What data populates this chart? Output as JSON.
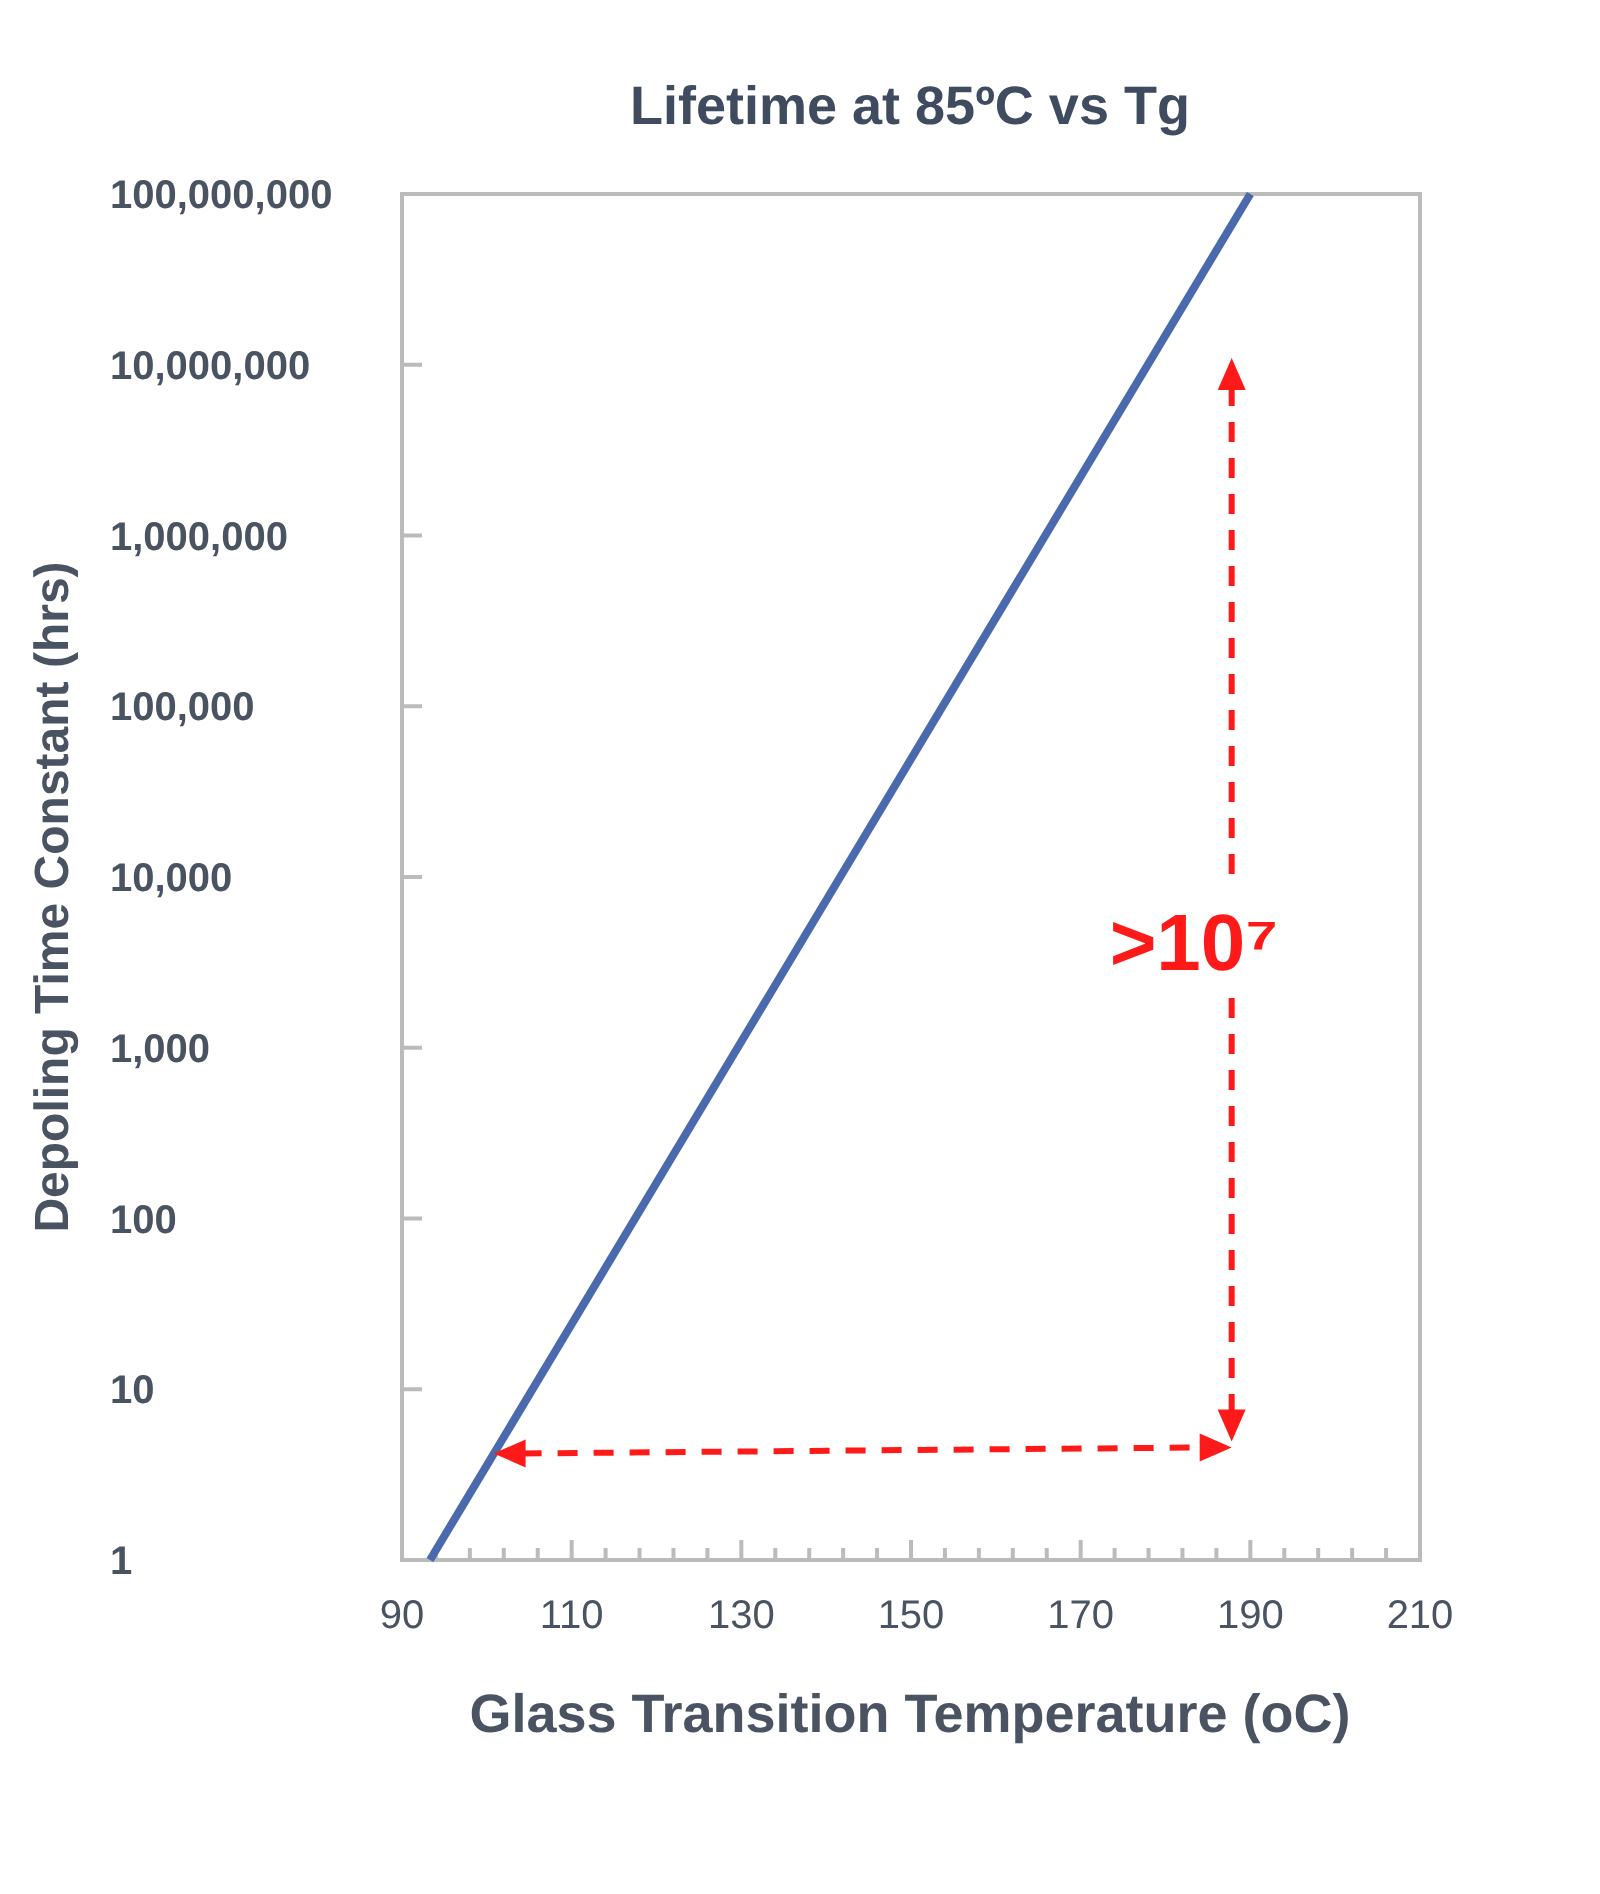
{
  "chart_data": {
    "type": "line",
    "title": "Lifetime at 85ºC vs Tg",
    "xlabel": "Glass Transition Temperature (oC)",
    "ylabel": "Depoling Time Constant (hrs)",
    "x": [
      93.3,
      190
    ],
    "series": [
      {
        "color": "#4a6aad",
        "values": [
          1,
          100000000
        ]
      }
    ],
    "log": "y",
    "xlim": [
      90,
      210
    ],
    "ylim": [
      1,
      100000000
    ],
    "xticks": [
      90,
      {
        "value": 94,
        "label": null
      },
      {
        "value": 98,
        "label": null
      },
      {
        "value": 102,
        "label": null
      },
      {
        "value": 106,
        "label": null
      },
      110,
      {
        "value": 114,
        "label": null
      },
      {
        "value": 118,
        "label": null
      },
      {
        "value": 122,
        "label": null
      },
      {
        "value": 126,
        "label": null
      },
      130,
      {
        "value": 134,
        "label": null
      },
      {
        "value": 138,
        "label": null
      },
      {
        "value": 142,
        "label": null
      },
      {
        "value": 146,
        "label": null
      },
      150,
      {
        "value": 154,
        "label": null
      },
      {
        "value": 158,
        "label": null
      },
      {
        "value": 162,
        "label": null
      },
      {
        "value": 166,
        "label": null
      },
      170,
      {
        "value": 174,
        "label": null
      },
      {
        "value": 178,
        "label": null
      },
      {
        "value": 182,
        "label": null
      },
      {
        "value": 186,
        "label": null
      },
      190,
      {
        "value": 194,
        "label": null
      },
      {
        "value": 198,
        "label": null
      },
      {
        "value": 202,
        "label": null
      },
      {
        "value": 206,
        "label": null
      },
      210
    ],
    "yticks": [
      1,
      10,
      100,
      {
        "value": 1000,
        "label": "1,000"
      },
      {
        "value": 10000,
        "label": "10,000"
      },
      {
        "value": 100000,
        "label": "100,000"
      },
      {
        "value": 1000000,
        "label": "1,000,000"
      },
      {
        "value": 10000000,
        "label": "10,000,000"
      },
      {
        "value": 100000000,
        "label": "100,000,000"
      }
    ],
    "grid": false,
    "marker": "none",
    "line_style": "solid",
    "annotations": [
      ">10⁷"
    ]
  }
}
